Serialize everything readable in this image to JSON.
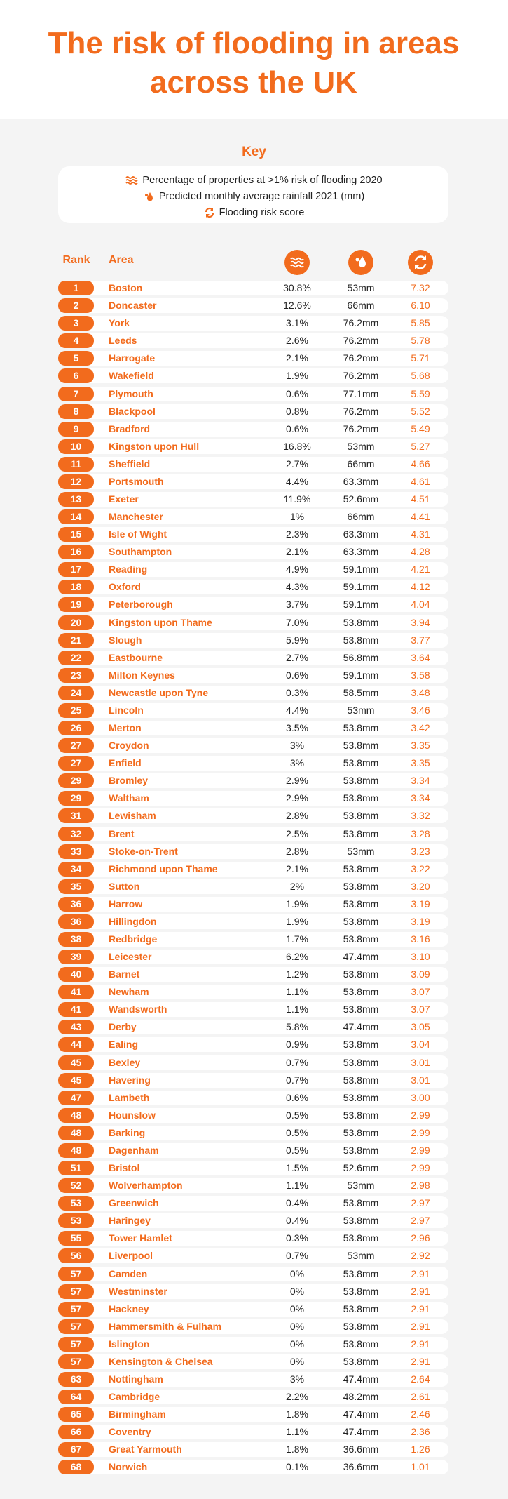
{
  "header": {
    "title": "The risk of flooding in areas across the UK"
  },
  "key": {
    "title": "Key",
    "items": [
      "Percentage of properties at >1% risk of flooding 2020",
      "Predicted monthly average rainfall 2021 (mm)",
      "Flooding risk score"
    ]
  },
  "table": {
    "headers": [
      "Rank",
      "Area"
    ],
    "rows": [
      [
        "1",
        "Boston",
        "30.8%",
        "53mm",
        "7.32"
      ],
      [
        "2",
        "Doncaster",
        "12.6%",
        "66mm",
        "6.10"
      ],
      [
        "3",
        "York",
        "3.1%",
        "76.2mm",
        "5.85"
      ],
      [
        "4",
        "Leeds",
        "2.6%",
        "76.2mm",
        "5.78"
      ],
      [
        "5",
        "Harrogate",
        "2.1%",
        "76.2mm",
        "5.71"
      ],
      [
        "6",
        "Wakefield",
        "1.9%",
        "76.2mm",
        "5.68"
      ],
      [
        "7",
        "Plymouth",
        "0.6%",
        "77.1mm",
        "5.59"
      ],
      [
        "8",
        "Blackpool",
        "0.8%",
        "76.2mm",
        "5.52"
      ],
      [
        "9",
        "Bradford",
        "0.6%",
        "76.2mm",
        "5.49"
      ],
      [
        "10",
        "Kingston upon Hull",
        "16.8%",
        "53mm",
        "5.27"
      ],
      [
        "11",
        "Sheffield",
        "2.7%",
        "66mm",
        "4.66"
      ],
      [
        "12",
        "Portsmouth",
        "4.4%",
        "63.3mm",
        "4.61"
      ],
      [
        "13",
        "Exeter",
        "11.9%",
        "52.6mm",
        "4.51"
      ],
      [
        "14",
        "Manchester",
        "1%",
        "66mm",
        "4.41"
      ],
      [
        "15",
        "Isle of Wight",
        "2.3%",
        "63.3mm",
        "4.31"
      ],
      [
        "16",
        "Southampton",
        "2.1%",
        "63.3mm",
        "4.28"
      ],
      [
        "17",
        "Reading",
        "4.9%",
        "59.1mm",
        "4.21"
      ],
      [
        "18",
        "Oxford",
        "4.3%",
        "59.1mm",
        "4.12"
      ],
      [
        "19",
        "Peterborough",
        "3.7%",
        "59.1mm",
        "4.04"
      ],
      [
        "20",
        "Kingston upon Thame",
        "7.0%",
        "53.8mm",
        "3.94"
      ],
      [
        "21",
        "Slough",
        "5.9%",
        "53.8mm",
        "3.77"
      ],
      [
        "22",
        "Eastbourne",
        "2.7%",
        "56.8mm",
        "3.64"
      ],
      [
        "23",
        "Milton Keynes",
        "0.6%",
        "59.1mm",
        "3.58"
      ],
      [
        "24",
        "Newcastle upon Tyne",
        "0.3%",
        "58.5mm",
        "3.48"
      ],
      [
        "25",
        "Lincoln",
        "4.4%",
        "53mm",
        "3.46"
      ],
      [
        "26",
        "Merton",
        "3.5%",
        "53.8mm",
        "3.42"
      ],
      [
        "27",
        "Croydon",
        "3%",
        "53.8mm",
        "3.35"
      ],
      [
        "27",
        "Enfield",
        "3%",
        "53.8mm",
        "3.35"
      ],
      [
        "29",
        "Bromley",
        "2.9%",
        "53.8mm",
        "3.34"
      ],
      [
        "29",
        "Waltham",
        "2.9%",
        "53.8mm",
        "3.34"
      ],
      [
        "31",
        "Lewisham",
        "2.8%",
        "53.8mm",
        "3.32"
      ],
      [
        "32",
        "Brent",
        "2.5%",
        "53.8mm",
        "3.28"
      ],
      [
        "33",
        "Stoke-on-Trent",
        "2.8%",
        "53mm",
        "3.23"
      ],
      [
        "34",
        "Richmond upon Thame",
        "2.1%",
        "53.8mm",
        "3.22"
      ],
      [
        "35",
        "Sutton",
        "2%",
        "53.8mm",
        "3.20"
      ],
      [
        "36",
        "Harrow",
        "1.9%",
        "53.8mm",
        "3.19"
      ],
      [
        "36",
        "Hillingdon",
        "1.9%",
        "53.8mm",
        "3.19"
      ],
      [
        "38",
        "Redbridge",
        "1.7%",
        "53.8mm",
        "3.16"
      ],
      [
        "39",
        "Leicester",
        "6.2%",
        "47.4mm",
        "3.10"
      ],
      [
        "40",
        "Barnet",
        "1.2%",
        "53.8mm",
        "3.09"
      ],
      [
        "41",
        "Newham",
        "1.1%",
        "53.8mm",
        "3.07"
      ],
      [
        "41",
        "Wandsworth",
        "1.1%",
        "53.8mm",
        "3.07"
      ],
      [
        "43",
        "Derby",
        "5.8%",
        "47.4mm",
        "3.05"
      ],
      [
        "44",
        "Ealing",
        "0.9%",
        "53.8mm",
        "3.04"
      ],
      [
        "45",
        "Bexley",
        "0.7%",
        "53.8mm",
        "3.01"
      ],
      [
        "45",
        "Havering",
        "0.7%",
        "53.8mm",
        "3.01"
      ],
      [
        "47",
        "Lambeth",
        "0.6%",
        "53.8mm",
        "3.00"
      ],
      [
        "48",
        "Hounslow",
        "0.5%",
        "53.8mm",
        "2.99"
      ],
      [
        "48",
        "Barking",
        "0.5%",
        "53.8mm",
        "2.99"
      ],
      [
        "48",
        "Dagenham",
        "0.5%",
        "53.8mm",
        "2.99"
      ],
      [
        "51",
        "Bristol",
        "1.5%",
        "52.6mm",
        "2.99"
      ],
      [
        "52",
        "Wolverhampton",
        "1.1%",
        "53mm",
        "2.98"
      ],
      [
        "53",
        "Greenwich",
        "0.4%",
        "53.8mm",
        "2.97"
      ],
      [
        "53",
        "Haringey",
        "0.4%",
        "53.8mm",
        "2.97"
      ],
      [
        "55",
        "Tower Hamlet",
        "0.3%",
        "53.8mm",
        "2.96"
      ],
      [
        "56",
        "Liverpool",
        "0.7%",
        "53mm",
        "2.92"
      ],
      [
        "57",
        "Camden",
        "0%",
        "53.8mm",
        "2.91"
      ],
      [
        "57",
        "Westminster",
        "0%",
        "53.8mm",
        "2.91"
      ],
      [
        "57",
        "Hackney",
        "0%",
        "53.8mm",
        "2.91"
      ],
      [
        "57",
        "Hammersmith & Fulham",
        "0%",
        "53.8mm",
        "2.91"
      ],
      [
        "57",
        "Islington",
        "0%",
        "53.8mm",
        "2.91"
      ],
      [
        "57",
        "Kensington & Chelsea",
        "0%",
        "53.8mm",
        "2.91"
      ],
      [
        "63",
        "Nottingham",
        "3%",
        "47.4mm",
        "2.64"
      ],
      [
        "64",
        "Cambridge",
        "2.2%",
        "48.2mm",
        "2.61"
      ],
      [
        "65",
        "Birmingham",
        "1.8%",
        "47.4mm",
        "2.46"
      ],
      [
        "66",
        "Coventry",
        "1.1%",
        "47.4mm",
        "2.36"
      ],
      [
        "67",
        "Great Yarmouth",
        "1.8%",
        "36.6mm",
        "1.26"
      ],
      [
        "68",
        "Norwich",
        "0.1%",
        "36.6mm",
        "1.01"
      ]
    ]
  }
}
